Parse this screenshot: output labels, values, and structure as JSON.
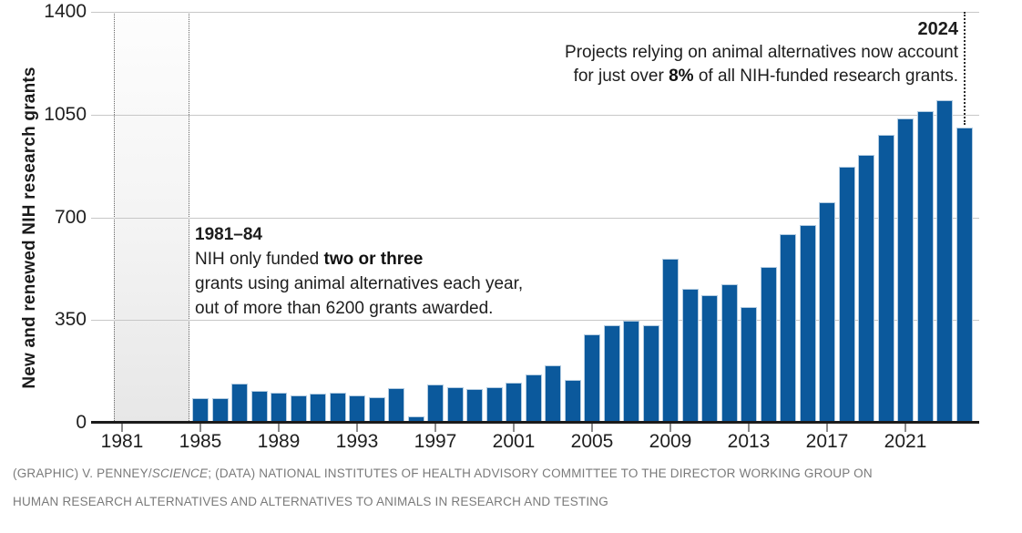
{
  "chart_data": {
    "type": "bar",
    "ylabel": "New and renewed NIH research grants",
    "xlabel": "",
    "ylim": [
      0,
      1400
    ],
    "yticks": [
      0,
      350,
      700,
      1050,
      1400
    ],
    "xticks": [
      1981,
      1985,
      1989,
      1993,
      1997,
      2001,
      2005,
      2009,
      2013,
      2017,
      2021
    ],
    "grid": "horizontal",
    "legend": "none",
    "bar_color": "#0b599c",
    "shaded_band_years": {
      "from": 1981,
      "to": 1984
    },
    "dotted_marker_year": 2024,
    "years": [
      1981,
      1982,
      1983,
      1984,
      1985,
      1986,
      1987,
      1988,
      1989,
      1990,
      1991,
      1992,
      1993,
      1994,
      1995,
      1996,
      1997,
      1998,
      1999,
      2000,
      2001,
      2002,
      2003,
      2004,
      2005,
      2006,
      2007,
      2008,
      2009,
      2010,
      2011,
      2012,
      2013,
      2014,
      2015,
      2016,
      2017,
      2018,
      2019,
      2020,
      2021,
      2022,
      2023,
      2024
    ],
    "values": [
      2,
      3,
      3,
      2,
      85,
      85,
      133,
      109,
      102,
      93,
      99,
      102,
      93,
      87,
      118,
      22,
      131,
      121,
      115,
      121,
      137,
      165,
      196,
      145,
      300,
      333,
      347,
      331,
      560,
      456,
      435,
      472,
      394,
      531,
      643,
      674,
      751,
      872,
      913,
      981,
      1037,
      1062,
      1100,
      1006
    ]
  },
  "annotations": {
    "left": {
      "title": "1981–84",
      "line1_pre": "NIH only funded ",
      "line1_bold": "two or three",
      "line2": "grants using animal alternatives each year,",
      "line3": "out of more than 6200 grants awarded."
    },
    "right": {
      "title": "2024",
      "line1": "Projects relying on animal alternatives now account",
      "line2_pre": "for just over ",
      "line2_bold": "8%",
      "line2_post": " of all NIH-funded research grants."
    }
  },
  "footer": {
    "line1_pre": "(GRAPHIC) V. PENNEY/",
    "line1_italic": "SCIENCE",
    "line1_post": "; (DATA) NATIONAL INSTITUTES OF HEALTH ADVISORY COMMITTEE TO THE DIRECTOR WORKING GROUP ON",
    "line2": "HUMAN RESEARCH ALTERNATIVES AND ALTERNATIVES TO ANIMALS IN RESEARCH AND TESTING"
  }
}
